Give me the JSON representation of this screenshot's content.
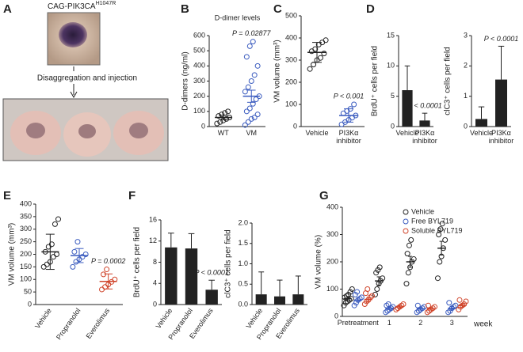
{
  "panel_labels": [
    "A",
    "B",
    "C",
    "D",
    "E",
    "F",
    "G"
  ],
  "panel_a": {
    "title": "CAG-PIK3CA",
    "title_sup": "H1047R",
    "caption": "Disaggregation and injection"
  },
  "chart_data": [
    {
      "type": "strip",
      "title": "D-dimer levels",
      "ylabel": "D-dimers (ng/ml)",
      "categories": [
        "WT",
        "VM"
      ],
      "colors": [
        "#222222",
        "#3a5bbf"
      ],
      "values": [
        [
          20,
          30,
          40,
          50,
          60,
          70,
          80,
          90,
          100
        ],
        [
          10,
          30,
          50,
          60,
          80,
          100,
          120,
          150,
          180,
          200,
          230,
          260,
          300,
          340,
          400,
          460,
          530,
          560
        ]
      ],
      "means": [
        60,
        200
      ],
      "errors": [
        15,
        40
      ],
      "ylim": [
        0,
        600
      ],
      "yticks": [
        0,
        100,
        200,
        300,
        400,
        500,
        600
      ],
      "annotation": "P = 0.02877"
    },
    {
      "type": "strip",
      "ylabel": "VM volume (mm³)",
      "categories": [
        "Vehicle",
        "PI3Kα\ninhibitor"
      ],
      "colors": [
        "#222222",
        "#3a5bbf"
      ],
      "values": [
        [
          260,
          280,
          300,
          310,
          330,
          340,
          350,
          370,
          380,
          390
        ],
        [
          10,
          20,
          30,
          40,
          50,
          60,
          70,
          80,
          100
        ]
      ],
      "means": [
        335,
        50
      ],
      "errors": [
        45,
        30
      ],
      "ylim": [
        0,
        500
      ],
      "yticks": [
        0,
        100,
        200,
        300,
        400,
        500
      ],
      "annotation": "P < 0.001"
    },
    {
      "type": "bar",
      "ylabel": "BrdU⁺ cells per field",
      "categories": [
        "Vehicle",
        "PI3Kα\ninhibitor"
      ],
      "values": [
        6,
        1
      ],
      "errors": [
        4,
        1.2
      ],
      "color": "#222222",
      "ylim": [
        0,
        15
      ],
      "yticks": [
        0,
        5,
        10,
        15
      ],
      "annotation": "P < 0.0001"
    },
    {
      "type": "bar",
      "ylabel": "clC3⁺ cells per field",
      "categories": [
        "Vehicle",
        "PI3Kα\ninhibitor"
      ],
      "values": [
        0.25,
        1.55
      ],
      "errors": [
        0.4,
        1.1
      ],
      "color": "#222222",
      "ylim": [
        0,
        3
      ],
      "yticks": [
        0,
        1,
        2,
        3
      ],
      "annotation": "P < 0.0001"
    },
    {
      "type": "strip",
      "ylabel": "VM volume (mm³)",
      "categories": [
        "Vehicle",
        "Propranolol",
        "Everolimus"
      ],
      "colors": [
        "#222222",
        "#3a5bbf",
        "#d0442a"
      ],
      "values": [
        [
          150,
          160,
          170,
          190,
          200,
          210,
          230,
          240,
          320,
          340
        ],
        [
          150,
          170,
          180,
          190,
          200,
          210,
          250
        ],
        [
          60,
          70,
          80,
          90,
          100,
          120,
          140
        ]
      ],
      "means": [
        210,
        195,
        92
      ],
      "errors": [
        70,
        28,
        30
      ],
      "ylim": [
        0,
        400
      ],
      "yticks": [
        0,
        50,
        100,
        150,
        200,
        250,
        300,
        350,
        400
      ],
      "annotation": "P = 0.0002"
    },
    {
      "type": "bar",
      "ylabel": "BrdU⁺ cells per field",
      "categories": [
        "Vehicle",
        "Propranolol",
        "Everolimus"
      ],
      "values": [
        10.8,
        10.6,
        2.8
      ],
      "errors": [
        2.7,
        2.8,
        1.8
      ],
      "color": "#222222",
      "ylim": [
        0,
        16
      ],
      "yticks": [
        0,
        4,
        8,
        12,
        16
      ],
      "annotation": "P < 0.0001"
    },
    {
      "type": "bar",
      "ylabel": "clC3⁺ cells per field",
      "categories": [
        "Vehicle",
        "Propranolol",
        "Everolimus"
      ],
      "values": [
        0.25,
        0.2,
        0.25
      ],
      "errors": [
        0.55,
        0.4,
        0.45
      ],
      "color": "#222222",
      "ylim": [
        0,
        2
      ],
      "yticks": [
        {
          "value": 0,
          "label": "0.0"
        },
        {
          "value": 0.5,
          "label": "0.5"
        },
        {
          "value": 1,
          "label": "1.0"
        },
        {
          "value": 1.5,
          "label": "1.5"
        },
        {
          "value": 2,
          "label": "2.0"
        }
      ]
    },
    {
      "type": "strip",
      "ylabel": "VM volume (%)",
      "xlabel": "week",
      "categories": [
        "Pretreatment",
        "1",
        "2",
        "3"
      ],
      "ylim": [
        0,
        400
      ],
      "yticks": [
        0,
        100,
        200,
        300,
        400
      ],
      "series": [
        {
          "name": "Vehicle",
          "color": "#222222",
          "values": [
            [
              40,
              50,
              55,
              60,
              65,
              70,
              75,
              80,
              90,
              100
            ],
            [
              80,
              100,
              120,
              130,
              140,
              160,
              170,
              180
            ],
            [
              120,
              160,
              180,
              200,
              210,
              230,
              260,
              280
            ],
            [
              140,
              200,
              220,
              250,
              280,
              300,
              320,
              340
            ]
          ],
          "means": [
            65,
            130,
            200,
            250
          ],
          "errors": [
            8,
            15,
            20,
            25
          ]
        },
        {
          "name": "Free BYL719",
          "color": "#3a5bbf",
          "values": [
            [
              40,
              50,
              60,
              65,
              70,
              80,
              90
            ],
            [
              15,
              20,
              25,
              30,
              35,
              40,
              45
            ],
            [
              15,
              20,
              25,
              30,
              35,
              40
            ],
            [
              15,
              20,
              30,
              35,
              40,
              50
            ]
          ],
          "means": [
            60,
            30,
            28,
            30
          ],
          "errors": [
            7,
            5,
            5,
            6
          ]
        },
        {
          "name": "Soluble BYL719",
          "color": "#d0442a",
          "values": [
            [
              45,
              55,
              60,
              70,
              75,
              85,
              100
            ],
            [
              25,
              30,
              35,
              40,
              45
            ],
            [
              15,
              20,
              25,
              30,
              35,
              40
            ],
            [
              25,
              35,
              40,
              45,
              55,
              60
            ]
          ],
          "means": [
            62,
            35,
            28,
            40
          ],
          "errors": [
            7,
            5,
            5,
            6
          ]
        }
      ]
    }
  ]
}
